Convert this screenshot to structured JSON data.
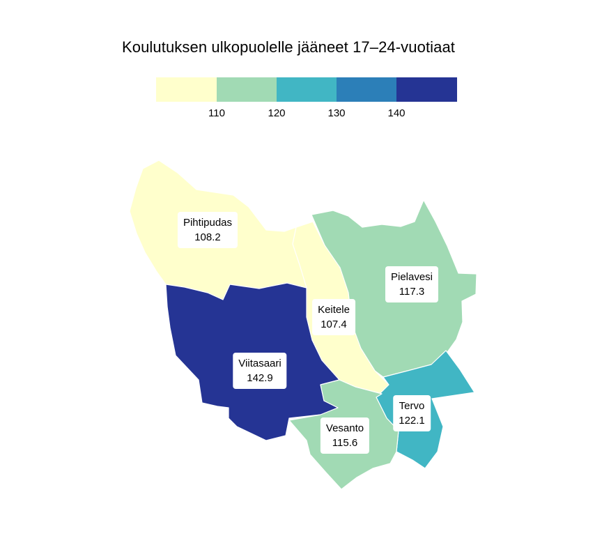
{
  "title": "Koulutuksen ulkopuolelle jääneet 17–24-vuotiaat",
  "legend": {
    "colors": [
      "#ffffcc",
      "#a1dab4",
      "#41b6c4",
      "#2c7fb8",
      "#253494"
    ],
    "ticks": [
      "110",
      "120",
      "130",
      "140"
    ]
  },
  "chart_data": {
    "type": "choropleth",
    "title": "Koulutuksen ulkopuolelle jääneet 17–24-vuotiaat",
    "breaks": [
      110,
      120,
      130,
      140
    ],
    "regions": [
      {
        "name": "Pihtipudas",
        "value": "108.2",
        "color": "#ffffcc"
      },
      {
        "name": "Pielavesi",
        "value": "117.3",
        "color": "#a1dab4"
      },
      {
        "name": "Keitele",
        "value": "107.4",
        "color": "#ffffcc"
      },
      {
        "name": "Viitasaari",
        "value": "142.9",
        "color": "#253494"
      },
      {
        "name": "Tervo",
        "value": "122.1",
        "color": "#41b6c4"
      },
      {
        "name": "Vesanto",
        "value": "115.6",
        "color": "#a1dab4"
      }
    ]
  }
}
